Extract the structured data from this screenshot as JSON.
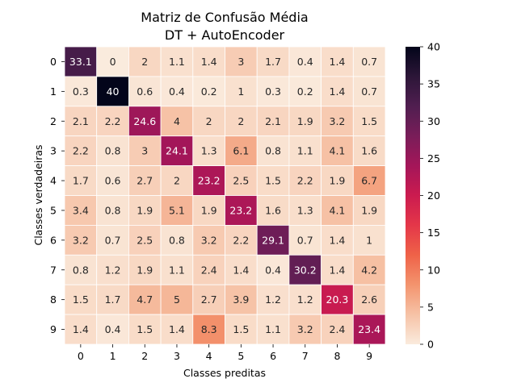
{
  "chart_data": {
    "type": "heatmap",
    "title_lines": [
      "Matriz de Confusão Média",
      "DT + AutoEncoder"
    ],
    "xlabel": "Classes preditas",
    "ylabel": "Classes verdadeiras",
    "x_categories": [
      "0",
      "1",
      "2",
      "3",
      "4",
      "5",
      "6",
      "7",
      "8",
      "9"
    ],
    "y_categories": [
      "0",
      "1",
      "2",
      "3",
      "4",
      "5",
      "6",
      "7",
      "8",
      "9"
    ],
    "values": [
      [
        33.1,
        0,
        2,
        1.1,
        1.4,
        3,
        1.7,
        0.4,
        1.4,
        0.7
      ],
      [
        0.3,
        40,
        0.6,
        0.4,
        0.2,
        1,
        0.3,
        0.2,
        1.4,
        0.7
      ],
      [
        2.1,
        2.2,
        24.6,
        4,
        2,
        2,
        2.1,
        1.9,
        3.2,
        1.5
      ],
      [
        2.2,
        0.8,
        3,
        24.1,
        1.3,
        6.1,
        0.8,
        1.1,
        4.1,
        1.6
      ],
      [
        1.7,
        0.6,
        2.7,
        2,
        23.2,
        2.5,
        1.5,
        2.2,
        1.9,
        6.7
      ],
      [
        3.4,
        0.8,
        1.9,
        5.1,
        1.9,
        23.2,
        1.6,
        1.3,
        4.1,
        1.9
      ],
      [
        3.2,
        0.7,
        2.5,
        0.8,
        3.2,
        2.2,
        29.1,
        0.7,
        1.4,
        1
      ],
      [
        0.8,
        1.2,
        1.9,
        1.1,
        2.4,
        1.4,
        0.4,
        30.2,
        1.4,
        4.2
      ],
      [
        1.5,
        1.7,
        4.7,
        5,
        2.7,
        3.9,
        1.2,
        1.2,
        20.3,
        2.6
      ],
      [
        1.4,
        0.4,
        1.5,
        1.4,
        8.3,
        1.5,
        1.1,
        3.2,
        2.4,
        23.4
      ]
    ],
    "colorbar": {
      "min": 0,
      "max": 40,
      "ticks": [
        "0",
        "5",
        "10",
        "15",
        "20",
        "25",
        "30",
        "35",
        "40"
      ]
    },
    "colormap": "rocket_r",
    "annotations": true,
    "grid_lines": "white"
  }
}
